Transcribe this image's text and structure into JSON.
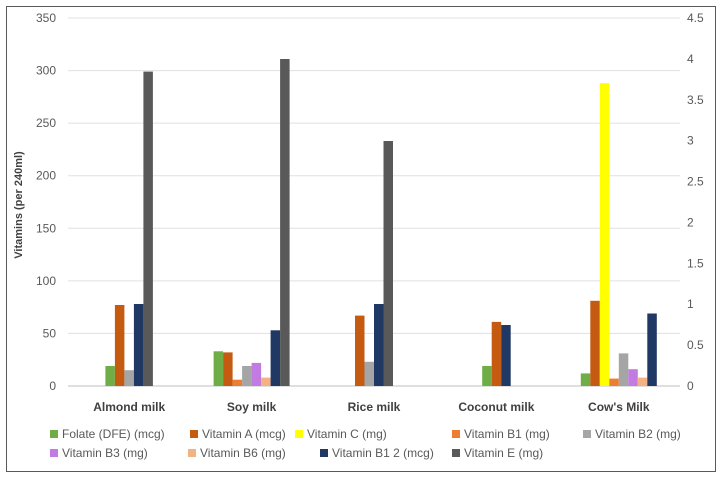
{
  "chart_data": {
    "type": "bar",
    "title": "",
    "xlabel": "",
    "ylabel": "Vitamins (per 240ml)",
    "ylim": [
      0,
      350
    ],
    "y2lim": [
      0,
      4.5
    ],
    "yticks": [
      "0",
      "50",
      "100",
      "150",
      "200",
      "250",
      "300",
      "350"
    ],
    "y2ticks": [
      "0",
      "0.5",
      "1",
      "1.5",
      "2",
      "2.5",
      "3",
      "3.5",
      "4",
      "4.5"
    ],
    "grid": "horizontal",
    "legend_position": "bottom",
    "categories": [
      "Almond milk",
      "Soy milk",
      "Rice milk",
      "Coconut milk",
      "Cow's Milk"
    ],
    "series": [
      {
        "name": "Folate (DFE) (mcg)",
        "color": "#70ad47",
        "values": [
          19,
          33,
          0,
          19,
          12
        ]
      },
      {
        "name": "Vitamin A (mcg)",
        "color": "#c55a11",
        "values": [
          77,
          32,
          67,
          61,
          81
        ]
      },
      {
        "name": "Vitamin C (mg)",
        "color": "#ffff00",
        "values": [
          0,
          0,
          0,
          0,
          288
        ]
      },
      {
        "name": "Vitamin B1 (mg)",
        "color": "#ed7d31",
        "values": [
          0,
          6,
          0,
          0,
          7
        ]
      },
      {
        "name": "Vitamin B2 (mg)",
        "color": "#a5a5a5",
        "values": [
          15,
          19,
          23,
          0,
          31
        ]
      },
      {
        "name": "Vitamin B3 (mg)",
        "color": "#c27be0",
        "values": [
          0,
          22,
          0,
          0,
          16
        ]
      },
      {
        "name": "Vitamin B6 (mg)",
        "color": "#f4b183",
        "values": [
          0,
          8,
          0,
          0,
          8
        ]
      },
      {
        "name": "Vitamin B12 (mcg)",
        "color": "#203864",
        "values": [
          78,
          53,
          78,
          58,
          69
        ]
      },
      {
        "name": "Vitamin E (mg)",
        "color": "#595959",
        "values": [
          299,
          311,
          233,
          0,
          0
        ]
      }
    ],
    "legend_labels": [
      "Folate (DFE) (mcg)",
      "Vitamin A (mcg)",
      "Vitamin C (mg)",
      "Vitamin B1 (mg)",
      "Vitamin B2 (mg)",
      "Vitamin B3 (mg)",
      "Vitamin B6 (mg)",
      "Vitamin B1 2 (mcg)",
      "Vitamin E (mg)"
    ]
  }
}
